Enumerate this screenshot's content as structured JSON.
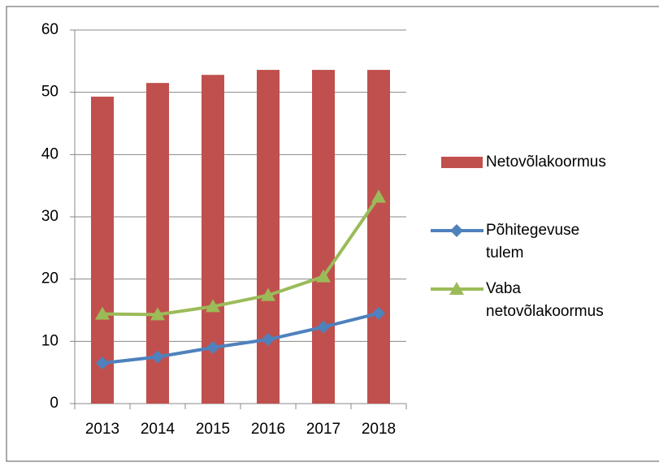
{
  "chart_data": {
    "type": "bar-line",
    "categories": [
      "2013",
      "2014",
      "2015",
      "2016",
      "2017",
      "2018"
    ],
    "series": [
      {
        "name": "Netovõlakoormus",
        "type": "bar",
        "color": "#c0504d",
        "values": [
          49.3,
          51.5,
          52.8,
          53.6,
          53.6,
          53.6
        ]
      },
      {
        "name": "Põhitegevuse tulem",
        "type": "line",
        "marker": "diamond",
        "color": "#4f81bd",
        "values": [
          6.5,
          7.5,
          9.0,
          10.3,
          12.3,
          14.5
        ]
      },
      {
        "name": "Vaba netovõlakoormus",
        "type": "line",
        "marker": "triangle",
        "color": "#9bbb59",
        "values": [
          14.4,
          14.3,
          15.6,
          17.4,
          20.4,
          33.2
        ]
      }
    ],
    "ylim": [
      0,
      60
    ],
    "yticks": [
      0,
      10,
      20,
      30,
      40,
      50,
      60
    ],
    "grid": true,
    "legend": "right"
  }
}
